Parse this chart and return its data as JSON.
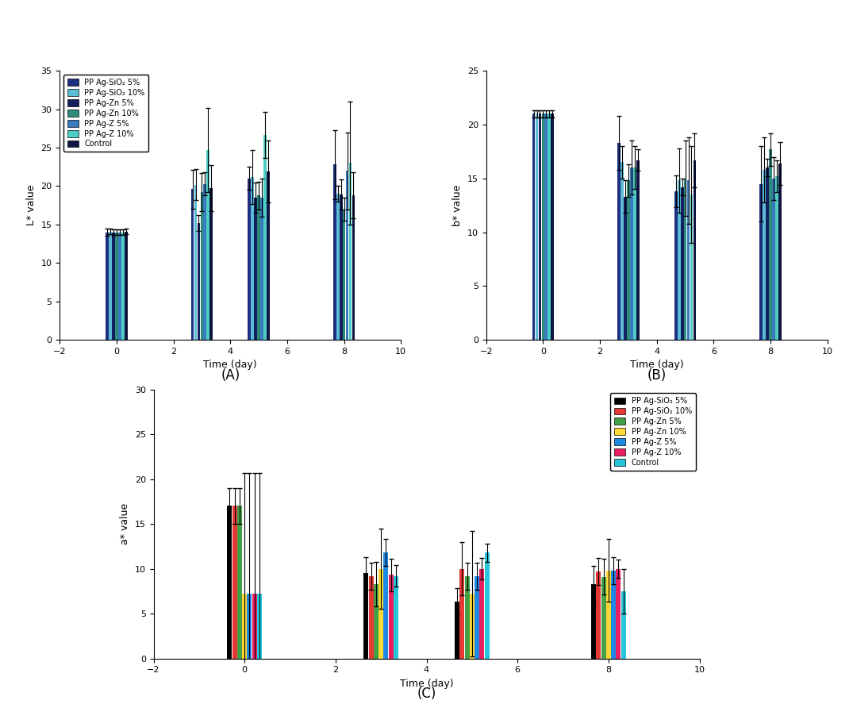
{
  "days": [
    0,
    3,
    5,
    8
  ],
  "bar_width": 0.11,
  "L_values": [
    [
      14.0,
      19.6,
      21.0,
      22.8
    ],
    [
      14.1,
      20.2,
      21.2,
      19.0
    ],
    [
      14.0,
      15.2,
      18.5,
      18.9
    ],
    [
      14.0,
      19.2,
      18.8,
      17.0
    ],
    [
      14.0,
      20.3,
      18.5,
      22.0
    ],
    [
      14.0,
      24.7,
      26.7,
      23.0
    ],
    [
      14.1,
      19.7,
      21.9,
      18.8
    ]
  ],
  "L_errors": [
    [
      0.5,
      2.5,
      1.5,
      4.5
    ],
    [
      0.4,
      2.0,
      3.5,
      1.0
    ],
    [
      0.4,
      1.0,
      2.0,
      2.0
    ],
    [
      0.4,
      2.5,
      1.8,
      1.5
    ],
    [
      0.4,
      1.5,
      2.5,
      5.0
    ],
    [
      0.4,
      5.5,
      3.0,
      8.0
    ],
    [
      0.4,
      3.0,
      4.0,
      3.0
    ]
  ],
  "b_values": [
    [
      21.0,
      18.3,
      13.8,
      14.5
    ],
    [
      21.0,
      16.5,
      14.8,
      15.8
    ],
    [
      21.0,
      13.3,
      14.2,
      16.0
    ],
    [
      21.0,
      14.8,
      15.0,
      17.7
    ],
    [
      21.0,
      16.0,
      14.8,
      15.0
    ],
    [
      21.0,
      16.0,
      13.5,
      15.2
    ],
    [
      21.0,
      16.7,
      16.7,
      16.4
    ]
  ],
  "b_errors": [
    [
      0.3,
      2.5,
      1.5,
      3.5
    ],
    [
      0.3,
      1.5,
      3.0,
      3.0
    ],
    [
      0.3,
      1.5,
      0.8,
      0.8
    ],
    [
      0.3,
      1.5,
      3.5,
      1.5
    ],
    [
      0.3,
      2.5,
      4.0,
      2.0
    ],
    [
      0.3,
      2.0,
      4.5,
      1.5
    ],
    [
      0.3,
      1.0,
      2.5,
      2.0
    ]
  ],
  "a_values": [
    [
      17.0,
      9.5,
      6.3,
      8.3
    ],
    [
      17.0,
      9.2,
      10.0,
      9.7
    ],
    [
      17.0,
      8.3,
      9.2,
      9.1
    ],
    [
      7.2,
      10.0,
      7.2,
      9.8
    ],
    [
      7.2,
      11.8,
      9.2,
      9.8
    ],
    [
      7.2,
      9.3,
      10.0,
      10.0
    ],
    [
      7.2,
      9.2,
      11.8,
      7.5
    ]
  ],
  "a_errors": [
    [
      2.0,
      1.8,
      1.5,
      2.0
    ],
    [
      2.0,
      1.5,
      3.0,
      1.5
    ],
    [
      2.0,
      2.5,
      1.5,
      2.0
    ],
    [
      13.5,
      4.5,
      7.0,
      3.5
    ],
    [
      13.5,
      1.5,
      1.5,
      1.5
    ],
    [
      13.5,
      1.8,
      1.2,
      1.0
    ],
    [
      13.5,
      1.2,
      1.0,
      2.5
    ]
  ],
  "colors_AB": [
    "#1c2f80",
    "#5bbcd6",
    "#132060",
    "#2e8b7a",
    "#3a7abf",
    "#4ecdc4",
    "#0d1540"
  ],
  "colors_C": [
    "#000000",
    "#e53935",
    "#43a047",
    "#fdd835",
    "#1e88e5",
    "#e91e63",
    "#26c6da"
  ],
  "labels_AB": [
    "PP Ag-SiO₂ 5%",
    "PP Ag-SiO₂ 10%",
    "PP Ag-Zn 5%",
    "PP Ag-Zn 10%",
    "PP Ag-Z 5%",
    "PP Ag-Z 10%",
    "Control"
  ],
  "labels_C": [
    "PP Ag-SiO₂ 5%",
    "PP Ag-SiO₂ 10%",
    "PP Ag-Zn 5%",
    "PP Ag-Zn 10%",
    "PP Ag-Z 5%",
    "PP Ag-Z 10%",
    "Control"
  ],
  "xlim": [
    -2,
    10
  ],
  "L_ylim": [
    0,
    35
  ],
  "b_ylim": [
    0,
    25
  ],
  "a_ylim": [
    0,
    30
  ],
  "xticks": [
    -2,
    0,
    2,
    4,
    6,
    8,
    10
  ],
  "xlabel": "Time (day)",
  "L_ylabel": "L* value",
  "b_ylabel": "b* value",
  "a_ylabel": "a* value",
  "panel_A": "(A)",
  "panel_B": "(B)",
  "panel_C": "(C)"
}
